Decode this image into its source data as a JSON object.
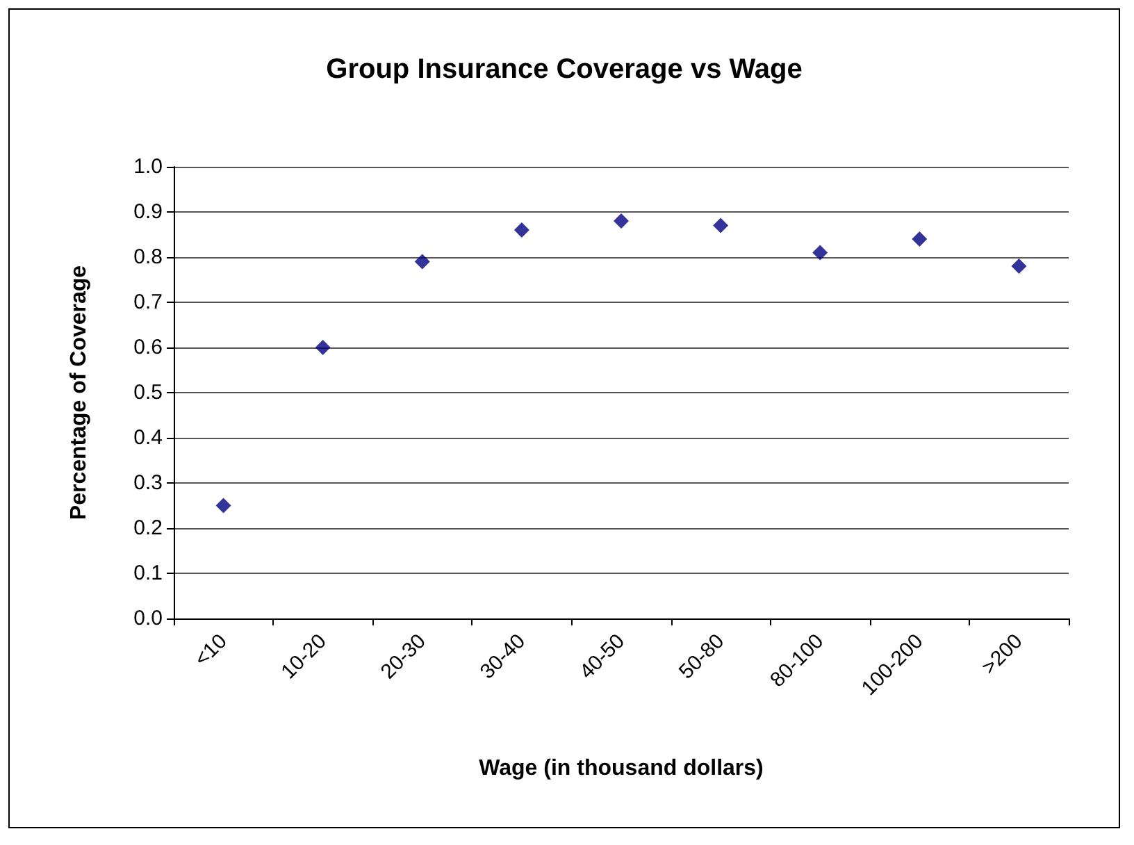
{
  "chart_data": {
    "type": "scatter",
    "title": "Group Insurance Coverage vs Wage",
    "xlabel": "Wage (in thousand dollars)",
    "ylabel": "Percentage of Coverage",
    "categories": [
      "<10",
      "10-20",
      "20-30",
      "30-40",
      "40-50",
      "50-80",
      "80-100",
      "100-200",
      ">200"
    ],
    "series": [
      {
        "color": "#000080",
        "values": [
          0.25,
          0.6,
          0.79,
          0.86,
          0.88,
          0.87,
          0.81,
          0.84,
          0.78
        ]
      }
    ],
    "ylim": [
      0,
      1
    ],
    "yticks": [
      {
        "value": 0,
        "label": "0.0"
      },
      0.1,
      0.2,
      0.3,
      0.4,
      0.5,
      0.6,
      0.7,
      0.8,
      0.9,
      {
        "value": 1,
        "label": "1.0"
      }
    ],
    "grid": "y",
    "marker": "diamond"
  }
}
